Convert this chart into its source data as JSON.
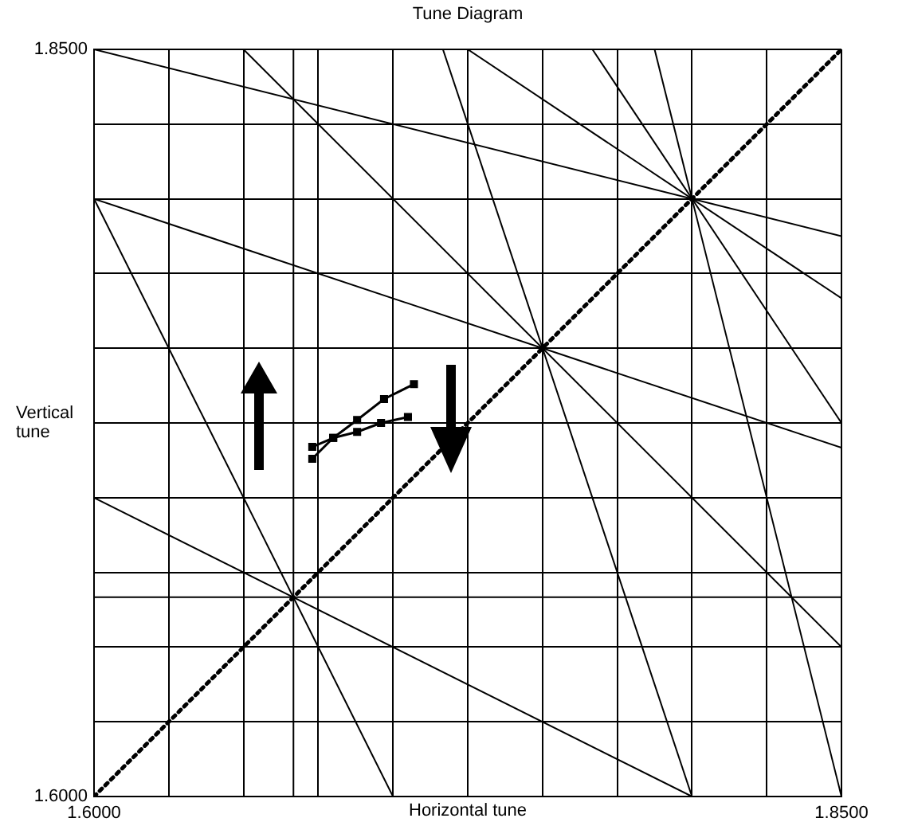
{
  "chart_data": {
    "type": "line",
    "title": "Tune Diagram",
    "xlabel": "Horizontal tune",
    "ylabel": "Vertical tune",
    "xlim": [
      1.6,
      1.85
    ],
    "ylim": [
      1.6,
      1.85
    ],
    "xticks": [
      {
        "value": 1.6,
        "label": "1.6000"
      },
      {
        "value": 1.625,
        "label": null
      },
      {
        "value": 1.65,
        "label": null
      },
      {
        "value": 1.675,
        "label": null
      },
      {
        "value": 1.7,
        "label": null
      },
      {
        "value": 1.725,
        "label": null
      },
      {
        "value": 1.75,
        "label": null
      },
      {
        "value": 1.775,
        "label": null
      },
      {
        "value": 1.8,
        "label": null
      },
      {
        "value": 1.825,
        "label": null
      },
      {
        "value": 1.85,
        "label": "1.8500"
      }
    ],
    "yticks": [
      {
        "value": 1.6,
        "label": "1.6000"
      },
      {
        "value": 1.625,
        "label": null
      },
      {
        "value": 1.65,
        "label": null
      },
      {
        "value": 1.675,
        "label": null
      },
      {
        "value": 1.7,
        "label": null
      },
      {
        "value": 1.725,
        "label": null
      },
      {
        "value": 1.75,
        "label": null
      },
      {
        "value": 1.775,
        "label": null
      },
      {
        "value": 1.8,
        "label": null
      },
      {
        "value": 1.825,
        "label": null
      },
      {
        "value": 1.85,
        "label": "1.8500"
      }
    ],
    "grid": true,
    "legend": false,
    "series": [
      {
        "color": "#000000",
        "marker": "none",
        "line_style": "solid",
        "x": [
          1.6667,
          1.6667
        ],
        "values": [
          1.6,
          1.85
        ]
      },
      {
        "color": "#000000",
        "marker": "none",
        "line_style": "solid",
        "x": [
          1.6,
          1.85
        ],
        "values": [
          1.6667,
          1.6667
        ]
      },
      {
        "color": "#000000",
        "marker": "none",
        "line_style": "solid",
        "x": [
          1.6,
          1.85
        ],
        "values": [
          1.85,
          1.7875
        ]
      },
      {
        "color": "#000000",
        "marker": "none",
        "line_style": "solid",
        "x": [
          1.725,
          1.85
        ],
        "values": [
          1.85,
          1.7667
        ]
      },
      {
        "color": "#000000",
        "marker": "none",
        "line_style": "solid",
        "x": [
          1.7667,
          1.85
        ],
        "values": [
          1.85,
          1.725
        ]
      },
      {
        "color": "#000000",
        "marker": "none",
        "line_style": "solid",
        "x": [
          1.7875,
          1.85
        ],
        "values": [
          1.85,
          1.6
        ]
      },
      {
        "color": "#000000",
        "marker": "none",
        "line_style": "solid",
        "x": [
          1.6,
          1.85
        ],
        "values": [
          1.8,
          1.7167
        ]
      },
      {
        "color": "#000000",
        "marker": "none",
        "line_style": "solid",
        "x": [
          1.65,
          1.85
        ],
        "values": [
          1.85,
          1.65
        ]
      },
      {
        "color": "#000000",
        "marker": "none",
        "line_style": "solid",
        "x": [
          1.7167,
          1.8
        ],
        "values": [
          1.85,
          1.6
        ]
      },
      {
        "color": "#000000",
        "marker": "none",
        "line_style": "solid",
        "x": [
          1.6,
          1.8
        ],
        "values": [
          1.7,
          1.6
        ]
      },
      {
        "color": "#000000",
        "marker": "none",
        "line_style": "solid",
        "x": [
          1.6,
          1.7
        ],
        "values": [
          1.8,
          1.6
        ]
      },
      {
        "color": "#000000",
        "marker": "none",
        "line_style": "dotted",
        "x": [
          1.6,
          1.85
        ],
        "values": [
          1.6,
          1.85
        ]
      },
      {
        "color": "#000000",
        "marker": "square",
        "line_style": "solid",
        "x": [
          1.673,
          1.68,
          1.688,
          1.697,
          1.707
        ],
        "values": [
          1.713,
          1.72,
          1.726,
          1.733,
          1.738
        ]
      },
      {
        "color": "#000000",
        "marker": "square",
        "line_style": "solid",
        "x": [
          1.673,
          1.68,
          1.688,
          1.696,
          1.705
        ],
        "values": [
          1.717,
          1.72,
          1.722,
          1.725,
          1.727
        ]
      }
    ]
  }
}
